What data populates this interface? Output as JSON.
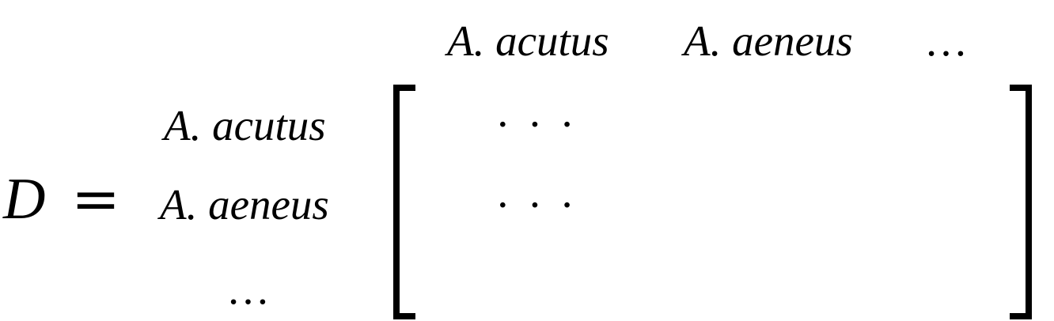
{
  "equation": {
    "lhs_symbol": "D",
    "equals_sign": "=",
    "column_headers": [
      "A. acutus",
      "A. aeneus",
      "…"
    ],
    "row_labels": [
      "A. acutus",
      "A. aeneus",
      "…"
    ],
    "matrix_rows": [
      "· · ·",
      "· · ·",
      ""
    ]
  }
}
